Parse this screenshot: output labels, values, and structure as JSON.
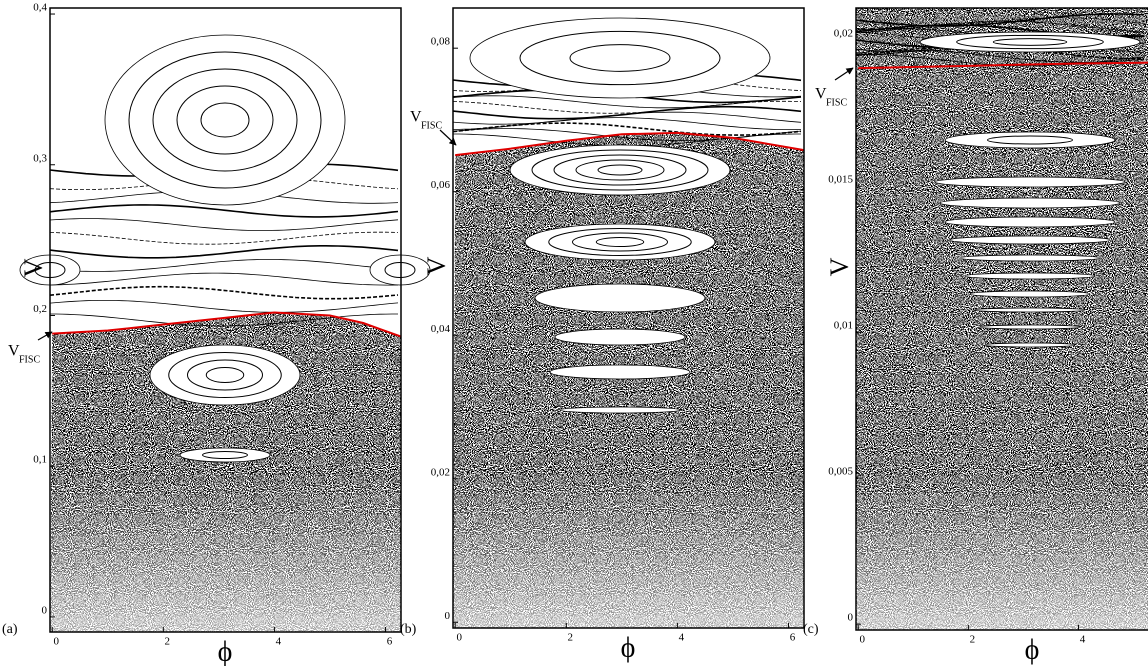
{
  "chart_data": [
    {
      "type": "scatter",
      "panel_label": "(a)",
      "xlabel": "ϕ",
      "ylabel": "V",
      "annotation": {
        "base": "V",
        "sub": "FISC"
      },
      "xlim": [
        -0.04,
        6.28
      ],
      "ylim": [
        -0.01,
        0.404
      ],
      "xticks": [
        0,
        2,
        4,
        6
      ],
      "yticks": [
        0,
        {
          "value": 0.1,
          "label": "0,1"
        },
        {
          "value": 0.2,
          "label": "0,2"
        },
        {
          "value": 0.3,
          "label": "0,3"
        },
        {
          "value": 0.4,
          "label": "0,4"
        }
      ],
      "series": [
        {
          "color": "#e00000",
          "x": [
            0,
            1,
            2,
            3,
            4,
            5,
            5.6,
            6.28
          ],
          "values": [
            0.188,
            0.19,
            0.194,
            0.198,
            0.202,
            0.2,
            0.195,
            0.186
          ]
        }
      ]
    },
    {
      "type": "scatter",
      "panel_label": "(b)",
      "xlabel": "ϕ",
      "ylabel": "V",
      "annotation": {
        "base": "V",
        "sub": "FISC"
      },
      "xlim": [
        -0.04,
        6.28
      ],
      "ylim": [
        -0.0008,
        0.0856
      ],
      "xticks": [
        0,
        2,
        4,
        6
      ],
      "yticks": [
        0,
        {
          "value": 0.02,
          "label": "0,02"
        },
        {
          "value": 0.04,
          "label": "0,04"
        },
        {
          "value": 0.06,
          "label": "0,06"
        },
        {
          "value": 0.08,
          "label": "0,08"
        }
      ],
      "series": [
        {
          "color": "#e00000",
          "x": [
            0,
            1,
            2,
            3,
            4,
            5,
            6.28
          ],
          "values": [
            0.0651,
            0.066,
            0.0671,
            0.068,
            0.0682,
            0.0675,
            0.0658
          ]
        }
      ]
    },
    {
      "type": "scatter",
      "panel_label": "(c)",
      "xlabel": "ϕ",
      "ylabel": "V",
      "annotation": {
        "base": "V",
        "sub": "FISC"
      },
      "xlim": [
        -0.04,
        6.28
      ],
      "ylim": [
        -0.0002,
        0.0211
      ],
      "xticks": [
        0,
        2,
        4
      ],
      "yticks": [
        0,
        {
          "value": 0.005,
          "label": "0,005"
        },
        {
          "value": 0.01,
          "label": "0,01"
        },
        {
          "value": 0.015,
          "label": "0,015"
        },
        {
          "value": 0.02,
          "label": "0,02"
        }
      ],
      "series": [
        {
          "color": "#e00000",
          "x": [
            0,
            2,
            4,
            6.28
          ],
          "values": [
            0.01904,
            0.01912,
            0.0192,
            0.01925
          ]
        }
      ]
    }
  ]
}
